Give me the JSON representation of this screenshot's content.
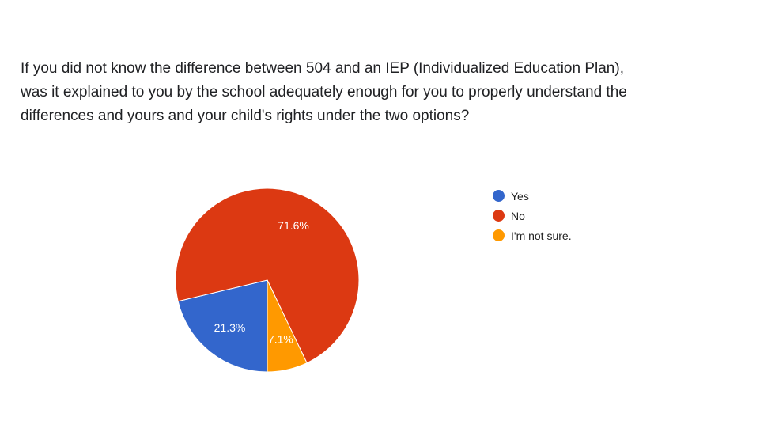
{
  "question": {
    "lines": [
      "If you did not know the difference between 504 and an IEP (Individualized Education Plan),",
      "was it explained to you by the school adequately enough for you to properly understand the",
      "differences and yours and your child's rights under the two options?"
    ]
  },
  "chart_data": {
    "type": "pie",
    "title": "If you did not know the difference between 504 and an IEP (Individualized Education Plan), was it explained to you by the school adequately enough for you to properly understand the differences and yours and your child's rights under the two options?",
    "categories": [
      "Yes",
      "No",
      "I'm not sure."
    ],
    "values": [
      21.3,
      71.6,
      7.1
    ],
    "value_labels": [
      "21.3%",
      "71.6%",
      "7.1%"
    ],
    "colors": [
      "#3366cc",
      "#dc3912",
      "#ff9900"
    ],
    "legend_position": "right",
    "start_angle_deg": 90,
    "direction": "clockwise"
  },
  "legend": {
    "items": [
      {
        "label": "Yes",
        "color": "#3366cc"
      },
      {
        "label": "No",
        "color": "#dc3912"
      },
      {
        "label": "I'm not sure.",
        "color": "#ff9900"
      }
    ]
  }
}
